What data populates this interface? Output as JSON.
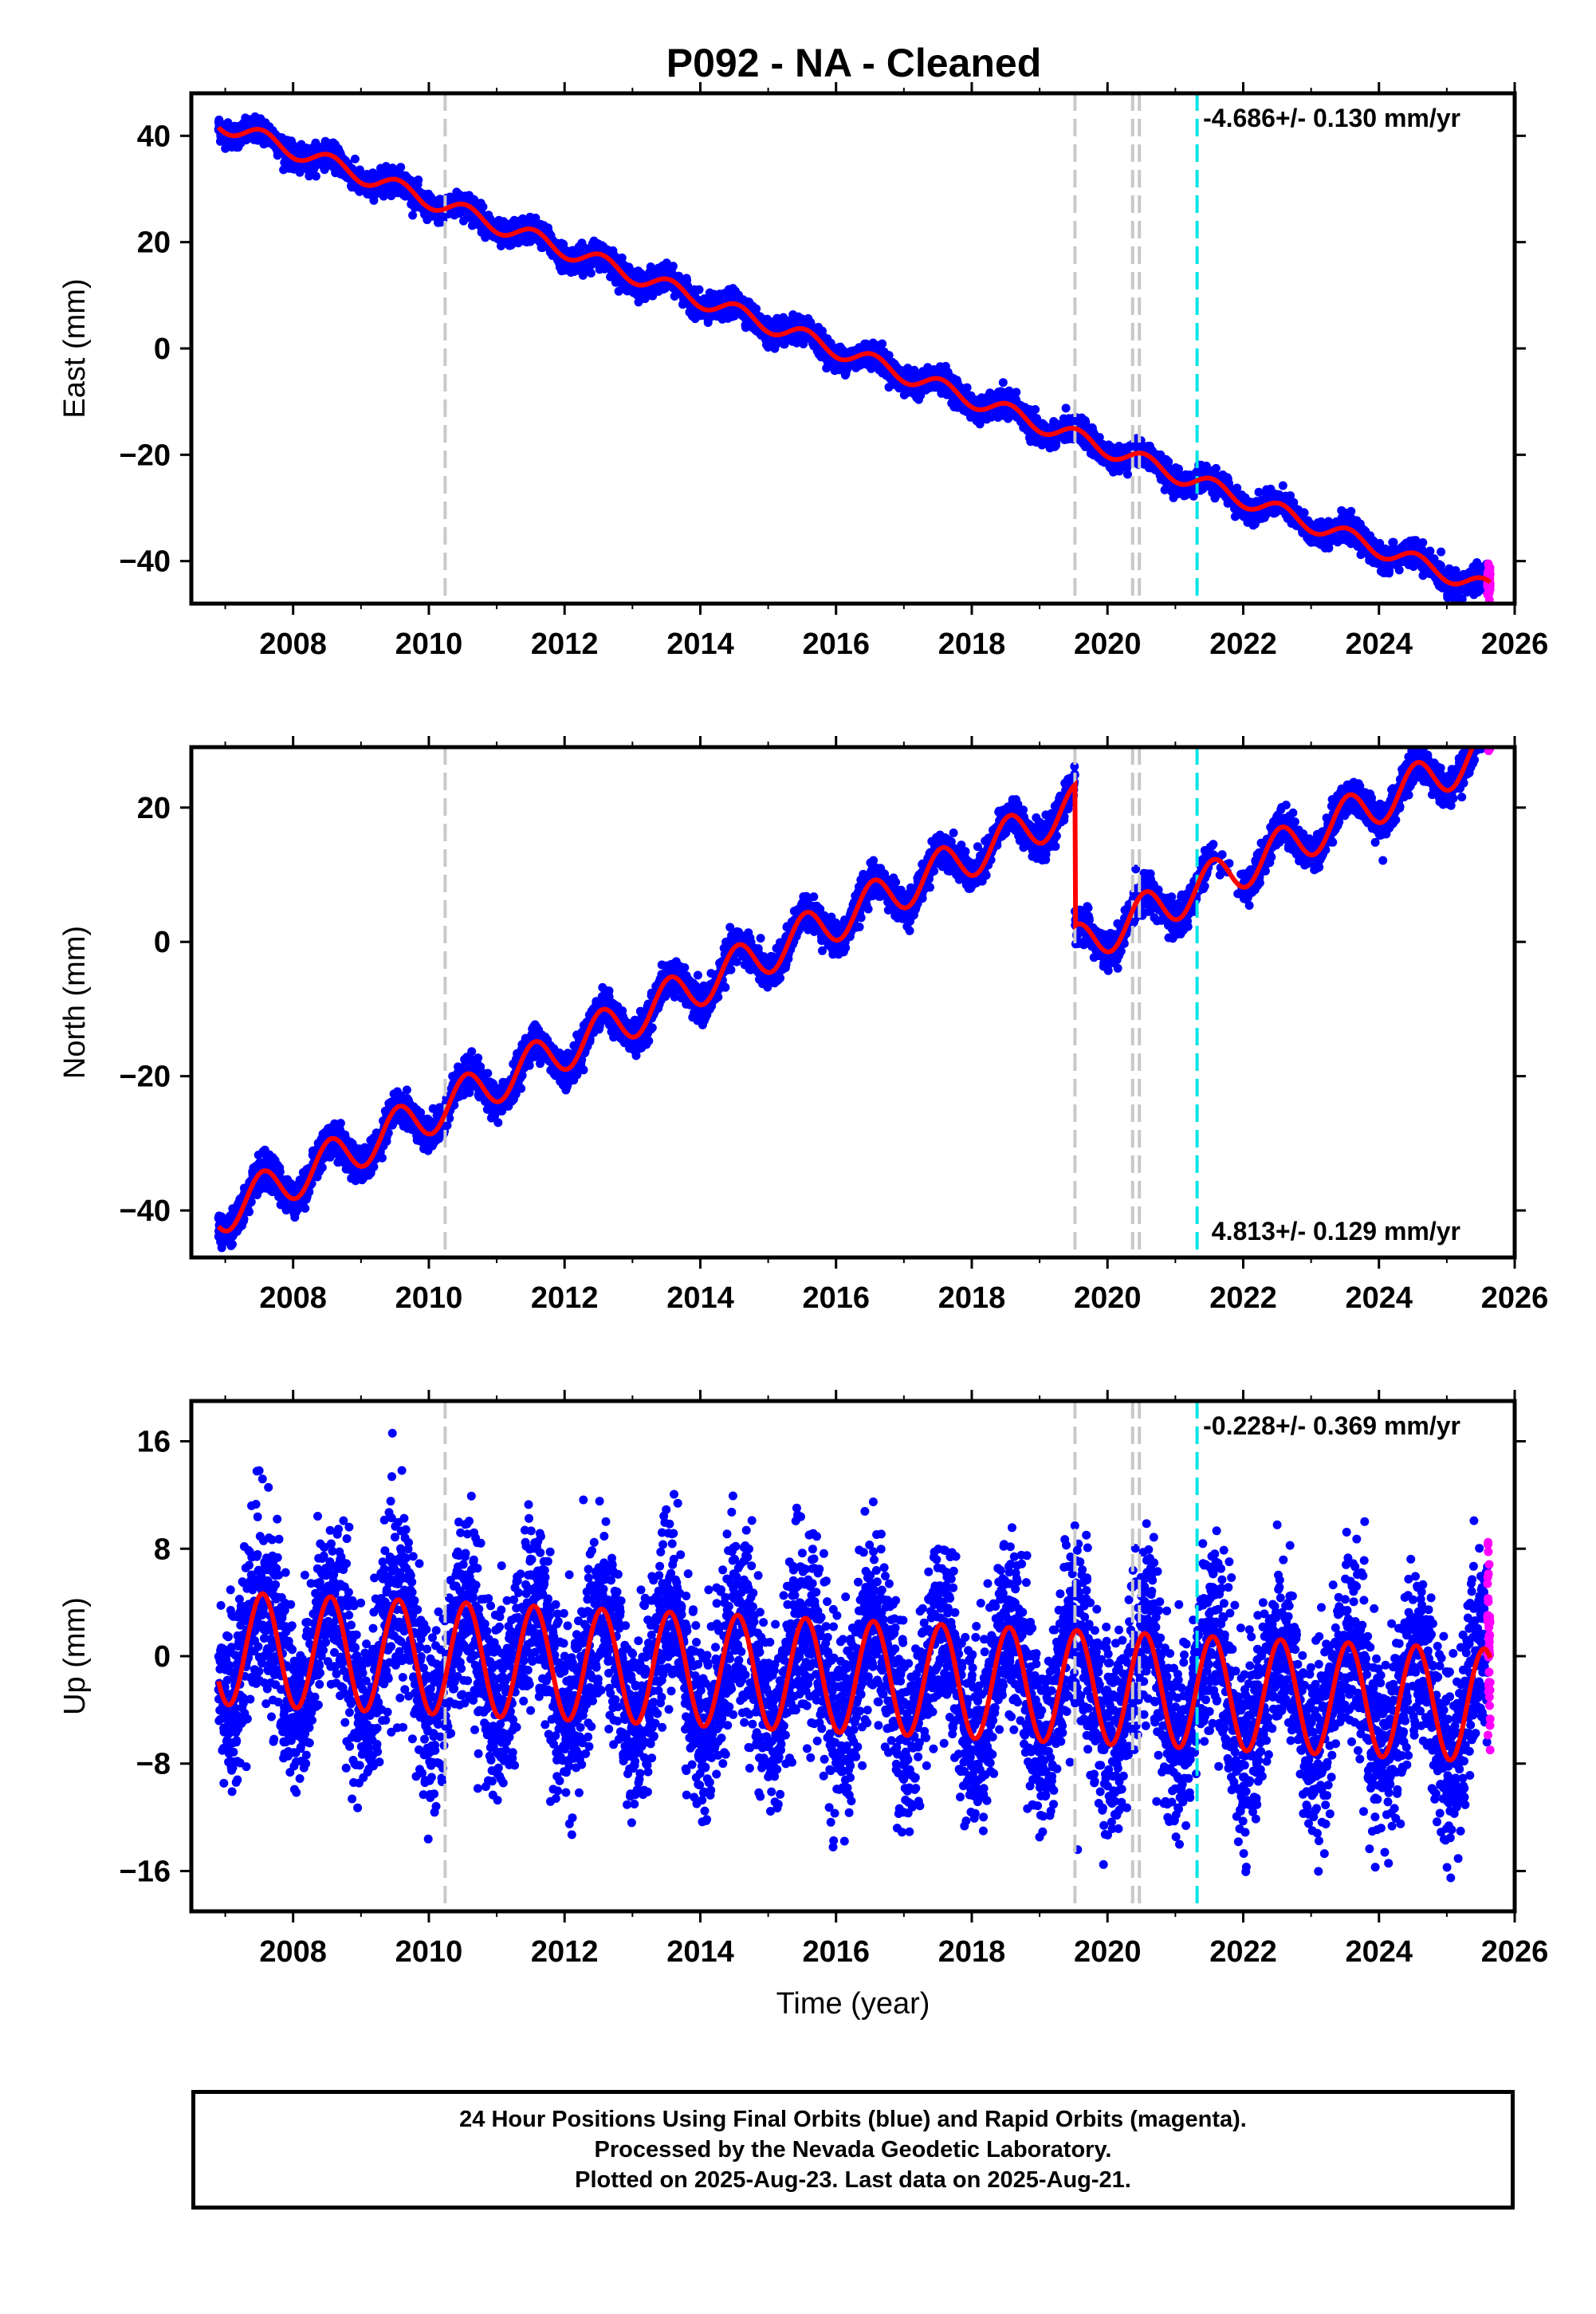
{
  "title": "P092  - NA - Cleaned",
  "colors": {
    "final_orbits": "#0000ff",
    "rapid_orbits": "#ff00ff",
    "model_fit": "#ff0000",
    "event_line": "#c8c8c8",
    "event_line_highlight": "#00e5e5"
  },
  "chart_data": [
    {
      "type": "scatter",
      "panel": "east",
      "ylabel": "East (mm)",
      "xlabel": "",
      "xlim": [
        2006.5,
        2026.0
      ],
      "ylim": [
        -48,
        48
      ],
      "xticks": [
        2008,
        2010,
        2012,
        2014,
        2016,
        2018,
        2020,
        2022,
        2024,
        2026
      ],
      "yticks": [
        -40,
        -20,
        0,
        20,
        40
      ],
      "rate_label": "-4.686+/- 0.130 mm/yr",
      "rate_label_position": "top-right",
      "model": {
        "start_year": 2006.9,
        "end_year": 2025.64,
        "intercept_at_start": 42.5,
        "rate_mm_per_yr": -4.686,
        "seasonal_amplitude": 1.6,
        "scatter_sd": 1.1,
        "offsets": []
      },
      "event_lines": [
        2010.24,
        2019.52,
        2020.37,
        2020.47
      ],
      "highlight_lines": [
        2021.32
      ]
    },
    {
      "type": "scatter",
      "panel": "north",
      "ylabel": "North (mm)",
      "xlabel": "",
      "xlim": [
        2006.5,
        2026.0
      ],
      "ylim": [
        -47,
        29
      ],
      "xticks": [
        2008,
        2010,
        2012,
        2014,
        2016,
        2018,
        2020,
        2022,
        2024,
        2026
      ],
      "yticks": [
        -40,
        -20,
        0,
        20
      ],
      "rate_label": "4.813+/- 0.129 mm/yr",
      "rate_label_position": "bottom-right",
      "model": {
        "start_year": 2006.9,
        "end_year": 2025.64,
        "intercept_at_start": -40.5,
        "rate_mm_per_yr": 4.813,
        "seasonal_amplitude": 3.2,
        "scatter_sd": 1.2,
        "offsets": [
          {
            "year": 2019.52,
            "value": -21.0
          }
        ]
      },
      "event_lines": [
        2010.24,
        2019.52,
        2020.37,
        2020.47
      ],
      "highlight_lines": [
        2021.32
      ]
    },
    {
      "type": "scatter",
      "panel": "up",
      "ylabel": "Up (mm)",
      "xlabel": "Time (year)",
      "xlim": [
        2006.5,
        2026.0
      ],
      "ylim": [
        -19,
        19
      ],
      "xticks": [
        2008,
        2010,
        2012,
        2014,
        2016,
        2018,
        2020,
        2022,
        2024,
        2026
      ],
      "yticks": [
        -16,
        -8,
        0,
        8,
        16
      ],
      "rate_label": "-0.228+/- 0.369 mm/yr",
      "rate_label_position": "top-right",
      "model": {
        "start_year": 2006.9,
        "end_year": 2025.64,
        "intercept_at_start": 0.6,
        "rate_mm_per_yr": -0.228,
        "seasonal_amplitude": 4.2,
        "scatter_sd": 3.4,
        "offsets": []
      },
      "event_lines": [
        2010.24,
        2019.52,
        2020.37,
        2020.47
      ],
      "highlight_lines": [
        2021.32
      ]
    }
  ],
  "footer": {
    "line1": "24 Hour Positions Using Final Orbits (blue) and Rapid Orbits (magenta).",
    "line2": "Processed by the Nevada Geodetic Laboratory.",
    "line3": "Plotted on 2025-Aug-23. Last data on 2025-Aug-21."
  }
}
